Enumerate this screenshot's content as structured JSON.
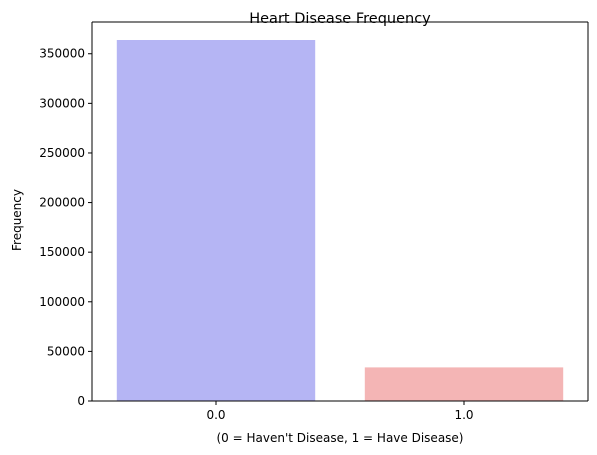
{
  "chart_data": {
    "type": "bar",
    "title": "Heart Disease Frequency",
    "xlabel": "(0 = Haven't Disease, 1 = Have Disease)",
    "ylabel": "Frequency",
    "categories": [
      "0.0",
      "1.0"
    ],
    "values": [
      363900,
      33900
    ],
    "colors": [
      "#b5b5f4",
      "#f4b5b5"
    ],
    "ylim": [
      0,
      382000
    ],
    "yticks": [
      0,
      50000,
      100000,
      150000,
      200000,
      250000,
      300000,
      350000
    ],
    "ytick_labels": [
      "0",
      "50000",
      "100000",
      "150000",
      "200000",
      "250000",
      "300000",
      "350000"
    ],
    "grid": false,
    "legend": false
  }
}
